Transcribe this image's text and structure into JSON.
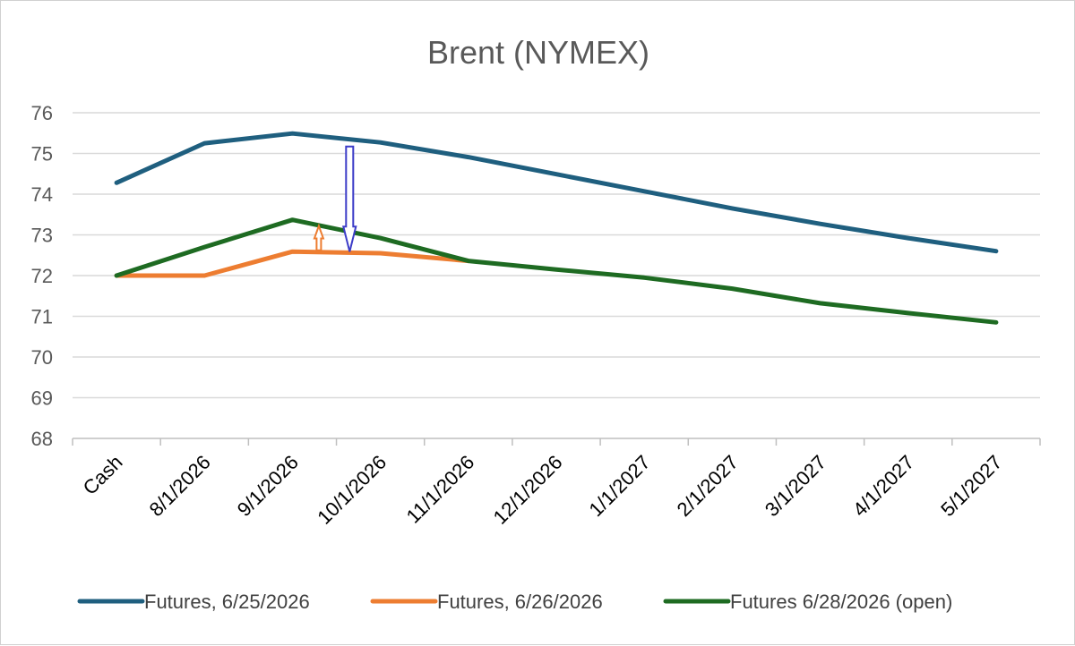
{
  "chart_data": {
    "type": "line",
    "title": "Brent (NYMEX)",
    "xlabel": "",
    "ylabel": "",
    "ylim": [
      68,
      76
    ],
    "yticks": [
      68,
      69,
      70,
      71,
      72,
      73,
      74,
      75,
      76
    ],
    "categories": [
      "Cash",
      "8/1/2026",
      "9/1/2026",
      "10/1/2026",
      "11/1/2026",
      "12/1/2026",
      "1/1/2027",
      "2/1/2027",
      "3/1/2027",
      "4/1/2027",
      "5/1/2027"
    ],
    "grid": true,
    "legend_position": "bottom",
    "series": [
      {
        "name": "Futures, 6/25/2026",
        "color": "#1f5f7f",
        "values": [
          74.28,
          75.25,
          75.49,
          75.27,
          74.91,
          74.49,
          74.07,
          73.65,
          73.27,
          72.92,
          72.6
        ]
      },
      {
        "name": "Futures, 6/26/2026",
        "color": "#ed7d31",
        "values": [
          72.0,
          72.0,
          72.59,
          72.55,
          72.36,
          null,
          null,
          null,
          null,
          null,
          null
        ]
      },
      {
        "name": "Futures 6/28/2026 (open)",
        "color": "#1e6b22",
        "values": [
          72.0,
          72.7,
          73.37,
          72.92,
          72.36,
          72.15,
          71.95,
          71.68,
          71.32,
          71.08,
          70.85
        ]
      }
    ],
    "annotations": [
      {
        "kind": "arrow-down",
        "color": "#3c3cc8",
        "x_category": "10/1/2026",
        "offset": -0.35,
        "from": 75.17,
        "to": 72.59
      },
      {
        "kind": "arrow-up",
        "color": "#ed7d31",
        "x_category": "9/1/2026",
        "offset": 0.3,
        "from": 72.62,
        "to": 73.22
      }
    ]
  }
}
